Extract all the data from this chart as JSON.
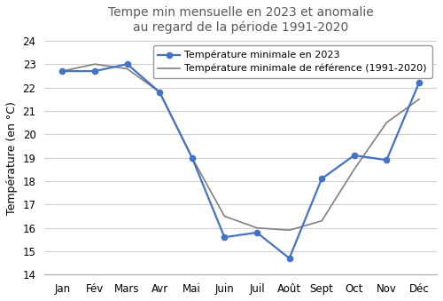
{
  "title": "Tempe min mensuelle en 2023 et anomalie\nau regard de la période 1991-2020",
  "ylabel": "Température (en °C)",
  "months": [
    "Jan",
    "Fév",
    "Mars",
    "Avr",
    "Mai",
    "Juin",
    "Juil",
    "Août",
    "Sept",
    "Oct",
    "Nov",
    "Déc"
  ],
  "temp_2023": [
    22.7,
    22.7,
    23.0,
    21.8,
    19.0,
    15.6,
    15.8,
    14.7,
    18.1,
    19.1,
    18.9,
    22.2
  ],
  "temp_ref": [
    22.7,
    23.0,
    22.8,
    21.8,
    19.0,
    16.5,
    16.0,
    15.9,
    16.3,
    18.5,
    20.5,
    21.5
  ],
  "color_2023": "#4472C4",
  "color_ref": "#808080",
  "ylim": [
    14,
    24
  ],
  "yticks": [
    14,
    15,
    16,
    17,
    18,
    19,
    20,
    21,
    22,
    23,
    24
  ],
  "legend_2023": "Température minimale en 2023",
  "legend_ref": "Température minimale de référence (1991-2020)",
  "title_color": "#595959",
  "title_fontsize": 10,
  "label_fontsize": 9,
  "tick_fontsize": 8.5,
  "legend_fontsize": 8
}
